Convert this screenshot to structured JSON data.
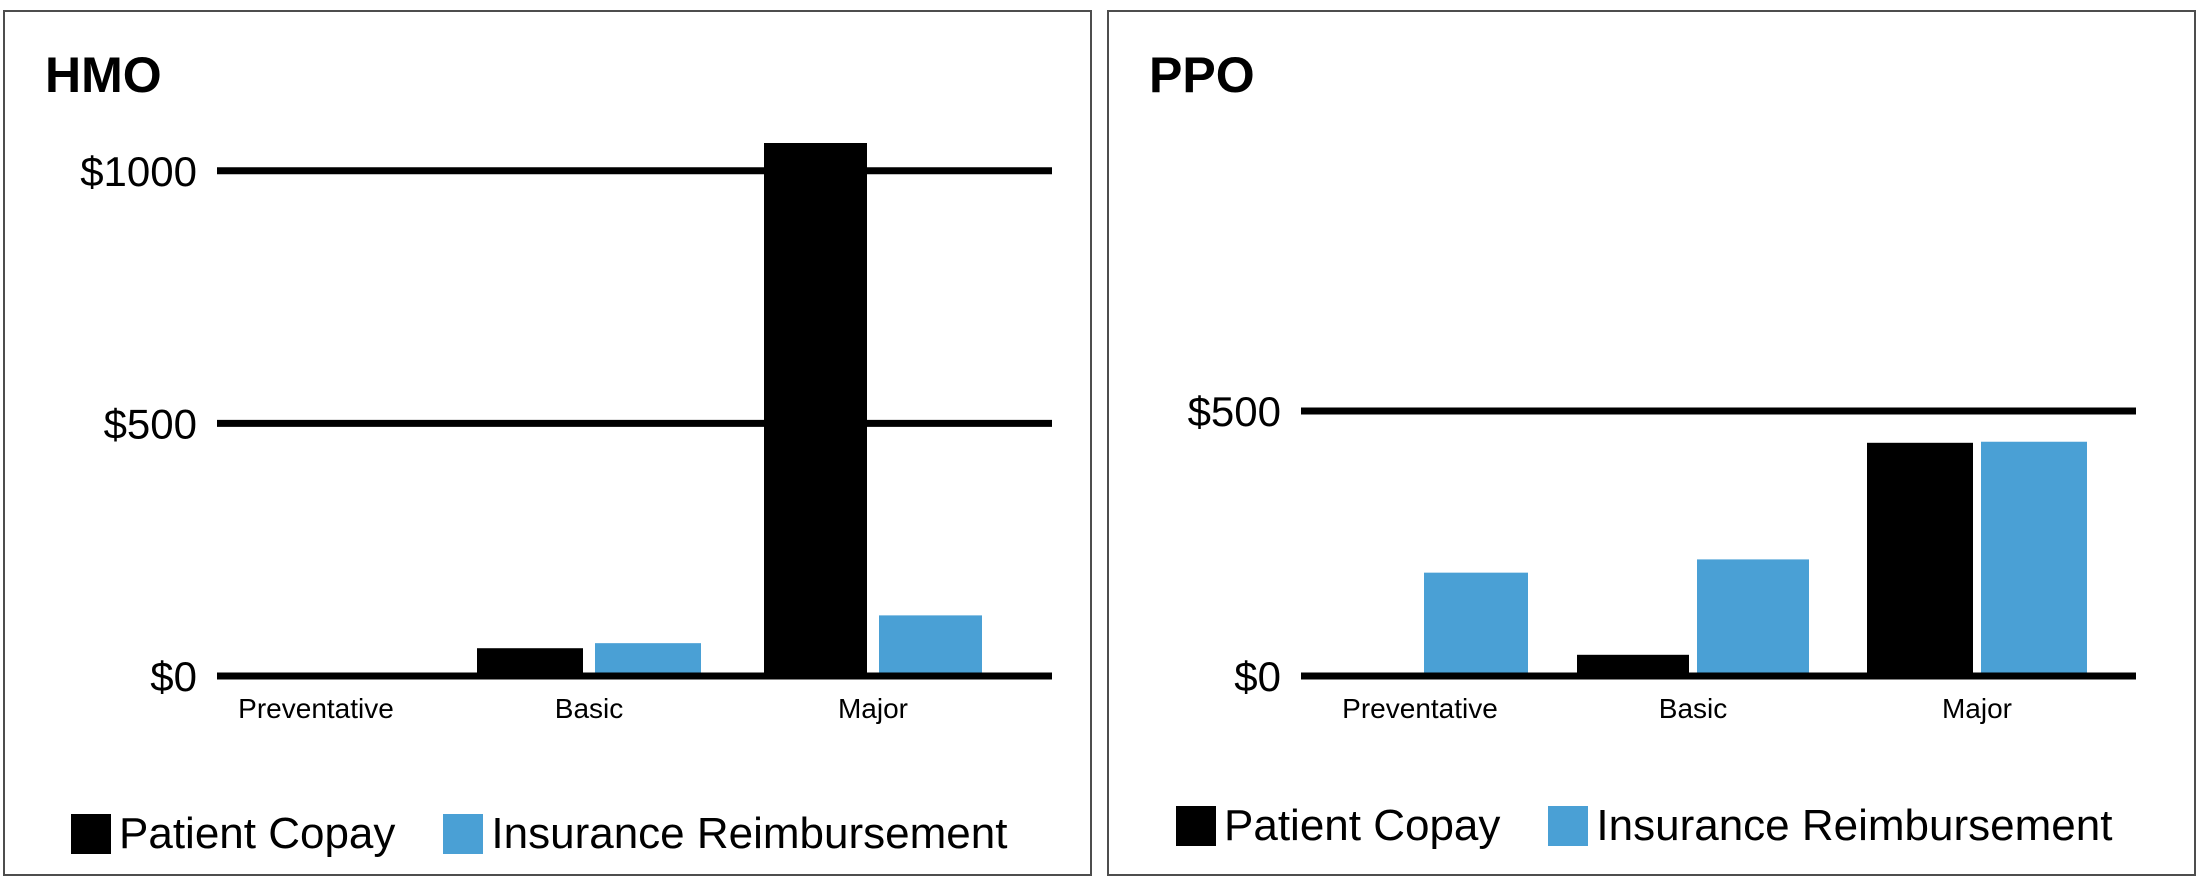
{
  "colors": {
    "copay": "#000000",
    "reimbursement": "#4aa0d5"
  },
  "legend": {
    "copay_label": "Patient Copay",
    "reimbursement_label": "Insurance Reimbursement"
  },
  "chart_data": [
    {
      "type": "bar",
      "title": "HMO",
      "categories": [
        "Preventative",
        "Basic",
        "Major"
      ],
      "series": [
        {
          "name": "Patient Copay",
          "values": [
            0,
            55,
            1055
          ]
        },
        {
          "name": "Insurance Reimbursement",
          "values": [
            0,
            65,
            120
          ]
        }
      ],
      "yticks": [
        0,
        500,
        1000
      ],
      "ytick_labels": [
        "$0",
        "$500",
        "$1000"
      ],
      "ylim": [
        0,
        1055
      ],
      "grid": true,
      "legend_position": "bottom"
    },
    {
      "type": "bar",
      "title": "PPO",
      "categories": [
        "Preventative",
        "Basic",
        "Major"
      ],
      "series": [
        {
          "name": "Patient Copay",
          "values": [
            0,
            40,
            440
          ]
        },
        {
          "name": "Insurance Reimbursement",
          "values": [
            195,
            220,
            442
          ]
        }
      ],
      "yticks": [
        0,
        500
      ],
      "ytick_labels": [
        "$0",
        "$500"
      ],
      "ylim": [
        0,
        500
      ],
      "grid": true,
      "legend_position": "bottom"
    }
  ]
}
